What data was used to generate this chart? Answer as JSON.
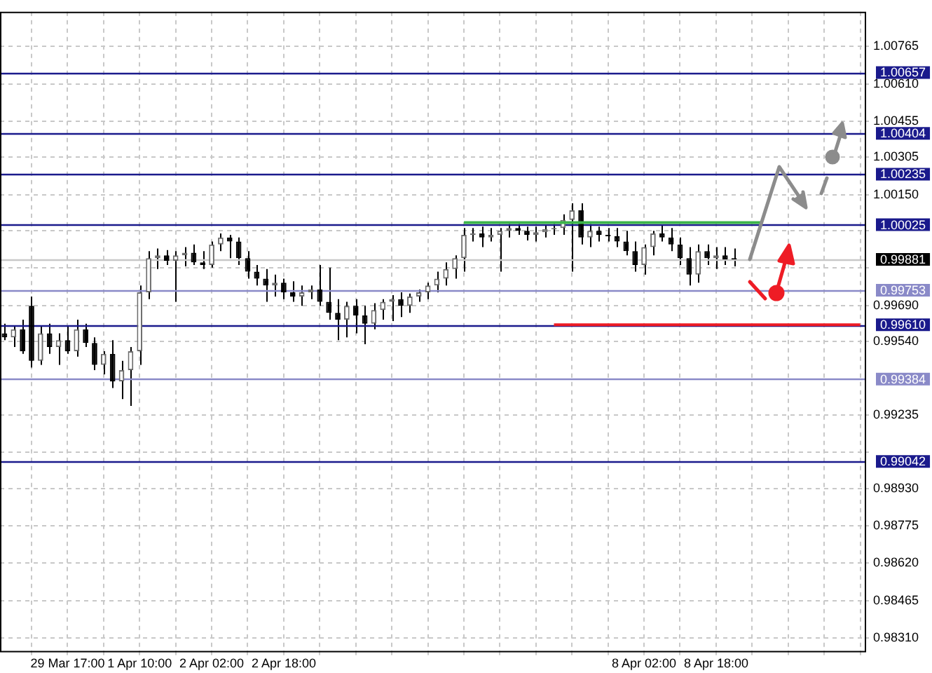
{
  "chart_data": {
    "type": "candlestick",
    "categories": [
      null,
      null,
      null,
      null,
      null,
      null,
      null,
      "29 Mar 17:00",
      null,
      null,
      null,
      null,
      null,
      null,
      null,
      "1 Apr 10:00",
      null,
      null,
      null,
      null,
      null,
      null,
      null,
      "2 Apr 02:00",
      null,
      null,
      null,
      null,
      null,
      null,
      null,
      "2 Apr 18:00",
      null,
      null,
      null,
      null,
      null,
      null,
      null,
      null,
      null,
      null,
      null,
      null,
      null,
      null,
      null,
      null,
      null,
      null,
      null,
      null,
      null,
      null,
      null,
      null,
      null,
      null,
      null,
      null,
      null,
      null,
      null,
      null,
      null,
      null,
      null,
      null,
      null,
      null,
      null,
      "8 Apr 02:00",
      null,
      null,
      null,
      null,
      null,
      null,
      null,
      "8 Apr 18:00",
      null,
      null,
      null,
      null,
      null,
      null,
      null,
      null,
      null,
      null,
      null,
      null,
      null,
      null,
      null,
      null
    ],
    "ohlc": [
      [
        0.99574,
        0.99614,
        0.99546,
        0.99557
      ],
      [
        0.99557,
        0.99602,
        0.99517,
        0.99591
      ],
      [
        0.99591,
        0.99631,
        0.99489,
        0.995
      ],
      [
        0.99688,
        0.99727,
        0.99432,
        0.9946
      ],
      [
        0.9946,
        0.99602,
        0.99443,
        0.99574
      ],
      [
        0.99574,
        0.99614,
        0.99489,
        0.99517
      ],
      [
        0.99517,
        0.99574,
        0.99443,
        0.99546
      ],
      [
        0.99546,
        0.99602,
        0.99489,
        0.995
      ],
      [
        0.995,
        0.99631,
        0.99477,
        0.99591
      ],
      [
        0.99591,
        0.99614,
        0.99517,
        0.99534
      ],
      [
        0.99534,
        0.99557,
        0.99421,
        0.99443
      ],
      [
        0.99443,
        0.995,
        0.99404,
        0.99489
      ],
      [
        0.99489,
        0.99546,
        0.99347,
        0.99375
      ],
      [
        0.99375,
        0.9946,
        0.99301,
        0.99421
      ],
      [
        0.99421,
        0.99517,
        0.99273,
        0.995
      ],
      [
        0.995,
        0.99773,
        0.99443,
        0.99744
      ],
      [
        0.99744,
        0.99915,
        0.99716,
        0.99886
      ],
      [
        0.99886,
        0.99926,
        0.99841,
        0.99898
      ],
      [
        0.99898,
        0.9992,
        0.99858,
        0.99875
      ],
      [
        0.99875,
        0.99915,
        0.99705,
        0.99898
      ],
      [
        0.99898,
        0.99932,
        0.99852,
        0.99909
      ],
      [
        0.99909,
        0.99943,
        0.99858,
        0.99869
      ],
      [
        0.99869,
        0.99915,
        0.99841,
        0.99858
      ],
      [
        0.99858,
        0.99955,
        0.99847,
        0.99943
      ],
      [
        0.99943,
        0.99989,
        0.99915,
        0.99972
      ],
      [
        0.99972,
        0.99983,
        0.99886,
        0.99955
      ],
      [
        0.99955,
        0.99972,
        0.99858,
        0.99886
      ],
      [
        0.99886,
        0.99915,
        0.99801,
        0.9983
      ],
      [
        0.9983,
        0.99858,
        0.99773,
        0.99801
      ],
      [
        0.99801,
        0.99841,
        0.99705,
        0.99773
      ],
      [
        0.99773,
        0.99818,
        0.99727,
        0.99784
      ],
      [
        0.99784,
        0.99801,
        0.99716,
        0.99744
      ],
      [
        0.99744,
        0.9979,
        0.99705,
        0.99727
      ],
      [
        0.99727,
        0.99773,
        0.99688,
        0.99744
      ],
      [
        0.99744,
        0.99773,
        0.99716,
        0.99756
      ],
      [
        0.99756,
        0.99858,
        0.99688,
        0.99705
      ],
      [
        0.99705,
        0.99847,
        0.99631,
        0.99659
      ],
      [
        0.99659,
        0.99716,
        0.99546,
        0.99631
      ],
      [
        0.99631,
        0.99705,
        0.99557,
        0.99688
      ],
      [
        0.99688,
        0.99716,
        0.99574,
        0.99648
      ],
      [
        0.99648,
        0.99688,
        0.99529,
        0.99614
      ],
      [
        0.99614,
        0.99699,
        0.99591,
        0.99671
      ],
      [
        0.99671,
        0.99716,
        0.99631,
        0.99705
      ],
      [
        0.99705,
        0.99733,
        0.99625,
        0.99716
      ],
      [
        0.99716,
        0.99744,
        0.99642,
        0.99688
      ],
      [
        0.99688,
        0.99739,
        0.99659,
        0.99727
      ],
      [
        0.99727,
        0.99756,
        0.99705,
        0.99744
      ],
      [
        0.99744,
        0.99784,
        0.99716,
        0.99773
      ],
      [
        0.99773,
        0.9983,
        0.99744,
        0.99801
      ],
      [
        0.99801,
        0.99869,
        0.99773,
        0.99841
      ],
      [
        0.99841,
        0.99898,
        0.99801,
        0.99886
      ],
      [
        0.99886,
        1.00011,
        0.9983,
        0.99983
      ],
      [
        0.99983,
        1.00011,
        0.99955,
        0.99989
      ],
      [
        0.99989,
        1.00017,
        0.99932,
        0.99972
      ],
      [
        0.99972,
        1.00011,
        0.99955,
        0.99983
      ],
      [
        0.99983,
        1.00011,
        0.9983,
        1.0
      ],
      [
        1.0,
        1.00028,
        0.99972,
        1.00011
      ],
      [
        1.00011,
        1.00028,
        0.99983,
        1.0
      ],
      [
        1.0,
        1.00017,
        0.9996,
        0.99983
      ],
      [
        0.99983,
        1.00017,
        0.99955,
        0.99994
      ],
      [
        0.99994,
        1.00023,
        0.99972,
        1.00006
      ],
      [
        1.00006,
        1.00028,
        0.99983,
        1.00011
      ],
      [
        1.00011,
        1.00068,
        0.99983,
        1.00045
      ],
      [
        1.00045,
        1.00114,
        0.9983,
        1.00085
      ],
      [
        1.00085,
        1.00114,
        0.99943,
        0.99972
      ],
      [
        0.99972,
        1.00028,
        0.99932,
        1.0
      ],
      [
        1.0,
        1.00017,
        0.99955,
        0.99983
      ],
      [
        0.99983,
        1.00011,
        0.99955,
        0.99977
      ],
      [
        0.99977,
        1.00011,
        0.99932,
        0.99955
      ],
      [
        0.99955,
        1.0,
        0.99898,
        0.99915
      ],
      [
        0.99915,
        0.99955,
        0.9983,
        0.99858
      ],
      [
        0.99858,
        0.99943,
        0.99818,
        0.99932
      ],
      [
        0.99932,
        1.0,
        0.99898,
        0.99989
      ],
      [
        0.99989,
        1.00023,
        0.99955,
        0.99972
      ],
      [
        0.99972,
        1.00011,
        0.99915,
        0.99943
      ],
      [
        0.99943,
        0.99972,
        0.99858,
        0.99886
      ],
      [
        0.99886,
        0.99932,
        0.99773,
        0.99818
      ],
      [
        0.99818,
        0.99943,
        0.99784,
        0.99915
      ],
      [
        0.99915,
        0.99943,
        0.99858,
        0.99886
      ],
      [
        0.99886,
        0.99932,
        0.99841,
        0.99898
      ],
      [
        0.99898,
        0.99932,
        0.99858,
        0.99881
      ],
      [
        0.99886,
        0.99926,
        0.99852,
        0.99881
      ],
      null,
      null,
      null,
      null,
      null,
      null,
      null,
      null,
      null,
      null,
      null,
      null,
      null,
      null
    ],
    "series": [
      {
        "type": "line",
        "color": "#3cb44b",
        "values": [
          null,
          null,
          null,
          null,
          null,
          null,
          null,
          null,
          null,
          null,
          null,
          null,
          null,
          null,
          null,
          null,
          null,
          null,
          null,
          null,
          null,
          null,
          null,
          null,
          null,
          null,
          null,
          null,
          null,
          null,
          null,
          null,
          null,
          null,
          null,
          null,
          null,
          null,
          null,
          null,
          null,
          null,
          null,
          null,
          null,
          null,
          null,
          null,
          null,
          null,
          null,
          1.00034,
          1.00034,
          1.00034,
          1.00034,
          1.00034,
          1.00034,
          1.00034,
          1.00034,
          1.00034,
          1.00034,
          1.00034,
          1.00034,
          1.00034,
          1.00034,
          1.00034,
          1.00034,
          1.00034,
          1.00034,
          1.00034,
          1.00034,
          1.00034,
          1.00034,
          1.00034,
          1.00034,
          1.00034,
          1.00034,
          1.00034,
          1.00034,
          1.00034,
          1.00034,
          1.00034,
          1.00034,
          1.00034,
          1.00034,
          null,
          null,
          null,
          null,
          null,
          null,
          null,
          null,
          null,
          null,
          null
        ]
      },
      {
        "type": "line",
        "color": "#ee1c25",
        "values": [
          null,
          null,
          null,
          null,
          null,
          null,
          null,
          null,
          null,
          null,
          null,
          null,
          null,
          null,
          null,
          null,
          null,
          null,
          null,
          null,
          null,
          null,
          null,
          null,
          null,
          null,
          null,
          null,
          null,
          null,
          null,
          null,
          null,
          null,
          null,
          null,
          null,
          null,
          null,
          null,
          null,
          null,
          null,
          null,
          null,
          null,
          null,
          null,
          null,
          null,
          null,
          null,
          null,
          null,
          null,
          null,
          null,
          null,
          null,
          null,
          null,
          0.9961,
          0.9961,
          0.9961,
          0.9961,
          0.9961,
          0.9961,
          0.9961,
          0.9961,
          0.9961,
          0.9961,
          0.9961,
          0.9961,
          0.9961,
          0.9961,
          0.9961,
          0.9961,
          0.9961,
          0.9961,
          0.9961,
          0.9961,
          0.9961,
          0.9961,
          0.9961,
          0.9961,
          0.9961,
          0.9961,
          0.9961,
          0.9961,
          0.9961,
          0.9961,
          0.9961,
          0.9961,
          0.9961,
          0.9961,
          0.9961
        ]
      }
    ],
    "ylim": [
      0.98256,
      1.00909
    ],
    "yticks": [
      {
        "value": 1.00765,
        "label": "1.00765"
      },
      {
        "value": 1.0061,
        "label": "1.00610"
      },
      {
        "value": 1.00455,
        "label": "1.00455"
      },
      {
        "value": 1.00305,
        "label": "1.00305"
      },
      {
        "value": 1.0015,
        "label": "1.00150"
      },
      {
        "value": 1.0,
        "label": null
      },
      {
        "value": 0.99845,
        "label": null
      },
      {
        "value": 0.9969,
        "label": "0.99690"
      },
      {
        "value": 0.9954,
        "label": "0.99540"
      },
      {
        "value": 0.99235,
        "label": "0.99235"
      },
      {
        "value": 0.9908,
        "label": null
      },
      {
        "value": 0.9893,
        "label": "0.98930"
      },
      {
        "value": 0.98775,
        "label": "0.98775"
      },
      {
        "value": 0.9862,
        "label": "0.98620"
      },
      {
        "value": 0.98465,
        "label": "0.98465"
      },
      {
        "value": 0.9831,
        "label": "0.98310"
      }
    ],
    "ref_lines": [
      {
        "axis": "y",
        "value": 1.00657,
        "label": "1.00657",
        "color": "#1a1a8c"
      },
      {
        "axis": "y",
        "value": 1.00404,
        "label": "1.00404",
        "color": "#1a1a8c"
      },
      {
        "axis": "y",
        "value": 1.00235,
        "label": "1.00235",
        "color": "#1a1a8c"
      },
      {
        "axis": "y",
        "value": 1.00025,
        "label": "1.00025",
        "color": "#1a1a8c"
      },
      {
        "axis": "y",
        "value": 0.99881,
        "label": "0.99881",
        "color": "#c8c8c8"
      },
      {
        "axis": "y",
        "value": 0.99753,
        "label": "0.99753",
        "color": "#8a8ac8"
      },
      {
        "axis": "y",
        "value": 0.9961,
        "label": "0.99610",
        "color": "#1a1a8c"
      },
      {
        "axis": "y",
        "value": 0.99384,
        "label": "0.99384",
        "color": "#8a8ac8"
      },
      {
        "axis": "y",
        "value": 0.99042,
        "label": "0.99042",
        "color": "#1a1a8c"
      }
    ],
    "grid": true,
    "legend": false
  }
}
